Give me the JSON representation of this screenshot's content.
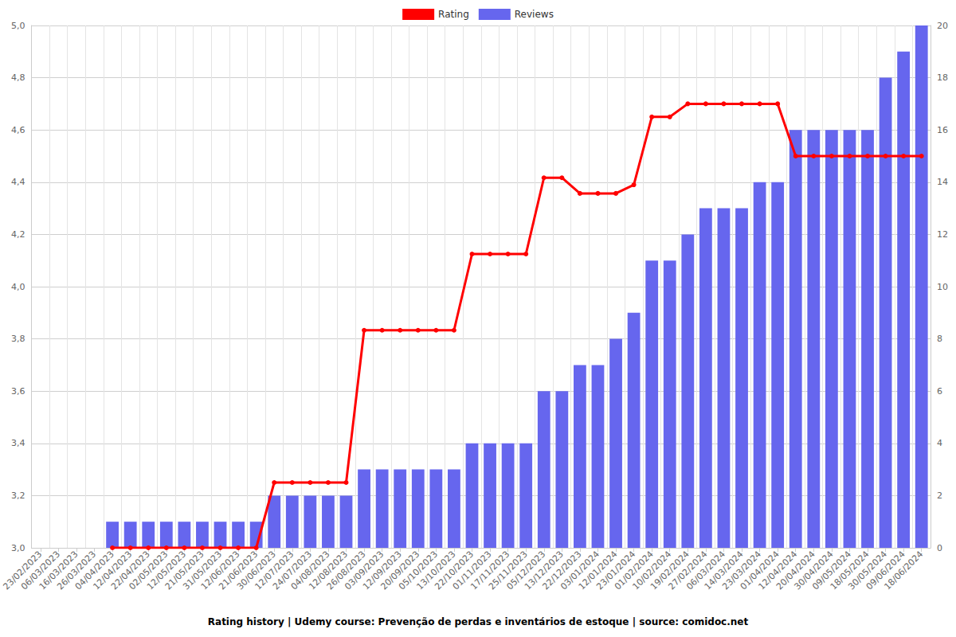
{
  "chart_data": {
    "type": "bar",
    "title": "Rating history | Udemy course: Prevenção de perdas e inventários de estoque | source: comidoc.net",
    "categories": [
      "23/02/2023",
      "06/03/2023",
      "16/03/2023",
      "26/03/2023",
      "04/04/2023",
      "12/04/2023",
      "22/04/2023",
      "02/05/2023",
      "12/05/2023",
      "21/05/2023",
      "31/05/2023",
      "12/06/2023",
      "21/06/2023",
      "30/06/2023",
      "12/07/2023",
      "24/07/2023",
      "04/08/2023",
      "12/08/2023",
      "26/08/2023",
      "03/09/2023",
      "12/09/2023",
      "20/09/2023",
      "05/10/2023",
      "13/10/2023",
      "22/10/2023",
      "01/11/2023",
      "17/11/2023",
      "25/11/2023",
      "05/12/2023",
      "13/12/2023",
      "22/12/2023",
      "03/01/2024",
      "12/01/2024",
      "23/01/2024",
      "01/02/2024",
      "10/02/2024",
      "19/02/2024",
      "27/02/2024",
      "06/03/2024",
      "14/03/2024",
      "23/03/2024",
      "01/04/2024",
      "12/04/2024",
      "20/04/2024",
      "30/04/2024",
      "09/05/2024",
      "18/05/2024",
      "30/05/2024",
      "09/06/2024",
      "18/06/2024"
    ],
    "series": [
      {
        "name": "Rating",
        "type": "line",
        "color": "#ff0000",
        "marker": "circle",
        "values": [
          null,
          null,
          null,
          null,
          3,
          3,
          3,
          3,
          3,
          3,
          3,
          3,
          3,
          3.25,
          3.25,
          3.25,
          3.25,
          3.25,
          3.833,
          3.833,
          3.833,
          3.833,
          3.833,
          3.833,
          4.125,
          4.125,
          4.125,
          4.125,
          4.417,
          4.417,
          4.357,
          4.357,
          4.357,
          4.39,
          4.65,
          4.65,
          4.7,
          4.7,
          4.7,
          4.7,
          4.7,
          4.7,
          4.5,
          4.5,
          4.5,
          4.5,
          4.5,
          4.5,
          4.5,
          4.5
        ]
      },
      {
        "name": "Reviews",
        "type": "bar",
        "color": "#6666ee",
        "axis": "y2",
        "values": [
          null,
          null,
          null,
          null,
          1,
          1,
          1,
          1,
          1,
          1,
          1,
          1,
          1,
          2,
          2,
          2,
          2,
          2,
          3,
          3,
          3,
          3,
          3,
          3,
          4,
          4,
          4,
          4,
          6,
          6,
          7,
          7,
          8,
          9,
          11,
          11,
          12,
          13,
          13,
          13,
          14,
          14,
          16,
          16,
          16,
          16,
          16,
          18,
          19,
          20
        ]
      }
    ],
    "ylim": [
      3,
      5
    ],
    "yticks": [
      {
        "value": 3,
        "label": "3,0"
      },
      {
        "value": 3.2,
        "label": "3,2"
      },
      {
        "value": 3.4,
        "label": "3,4"
      },
      {
        "value": 3.6,
        "label": "3,6"
      },
      {
        "value": 3.8,
        "label": "3,8"
      },
      {
        "value": 4,
        "label": "4,0"
      },
      {
        "value": 4.2,
        "label": "4,2"
      },
      {
        "value": 4.4,
        "label": "4,4"
      },
      {
        "value": 4.6,
        "label": "4,6"
      },
      {
        "value": 4.8,
        "label": "4,8"
      },
      {
        "value": 5,
        "label": "5,0"
      }
    ],
    "y2lim": [
      0,
      20
    ],
    "y2ticks": [
      0,
      2,
      4,
      6,
      8,
      10,
      12,
      14,
      16,
      18,
      20
    ],
    "grid": true,
    "legend": "top"
  }
}
